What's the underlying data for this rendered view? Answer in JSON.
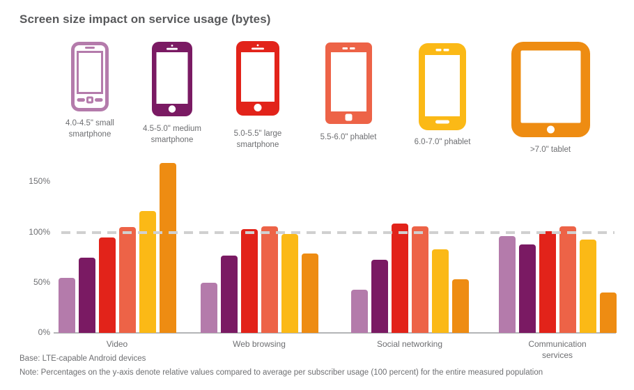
{
  "title": "Screen size impact on service usage (bytes)",
  "devices": [
    {
      "label": "4.0-4.5\" small smartphone",
      "color": "#b47bab"
    },
    {
      "label": "4.5-5.0\" medium smartphone",
      "color": "#7a1a63"
    },
    {
      "label": "5.0-5.5\" large smartphone",
      "color": "#e2231a"
    },
    {
      "label": "5.5-6.0\" phablet",
      "color": "#ed6347"
    },
    {
      "label": "6.0-7.0\" phablet",
      "color": "#fbb916"
    },
    {
      "label": ">7.0\" tablet",
      "color": "#ee8c12"
    }
  ],
  "chart_data": {
    "type": "bar",
    "title": "Screen size impact on service usage (bytes)",
    "categories": [
      "Video",
      "Web browsing",
      "Social networking",
      "Communication services"
    ],
    "series": [
      {
        "name": "4.0-4.5\" small smartphone",
        "color": "#b47bab",
        "values": [
          55,
          50,
          43,
          96
        ]
      },
      {
        "name": "4.5-5.0\" medium smartphone",
        "color": "#7a1a63",
        "values": [
          75,
          77,
          73,
          88
        ]
      },
      {
        "name": "5.0-5.5\" large smartphone",
        "color": "#e2231a",
        "values": [
          95,
          103,
          109,
          101
        ]
      },
      {
        "name": "5.5-6.0\" phablet",
        "color": "#ed6347",
        "values": [
          105,
          106,
          106,
          106
        ]
      },
      {
        "name": "6.0-7.0\" phablet",
        "color": "#fbb916",
        "values": [
          121,
          98,
          83,
          93
        ]
      },
      {
        "name": ">7.0\" tablet",
        "color": "#ee8c12",
        "values": [
          169,
          79,
          53,
          40
        ]
      }
    ],
    "xlabel": "",
    "ylabel": "",
    "ylim": [
      0,
      175
    ],
    "y_ticks": [
      {
        "value": 0,
        "label": "0%"
      },
      {
        "value": 50,
        "label": "50%"
      },
      {
        "value": 100,
        "label": "100%"
      },
      {
        "value": 150,
        "label": "150%"
      }
    ],
    "reference_line": {
      "value": 100,
      "style": "dashed",
      "color": "#d0d0d0"
    },
    "grid": "off",
    "legend_position": "top-device-icons"
  },
  "footer": {
    "base": "Base: LTE-capable Android devices",
    "note": "Note: Percentages on the y-axis denote relative values compared to average per subscriber usage (100 percent) for the entire measured population"
  }
}
